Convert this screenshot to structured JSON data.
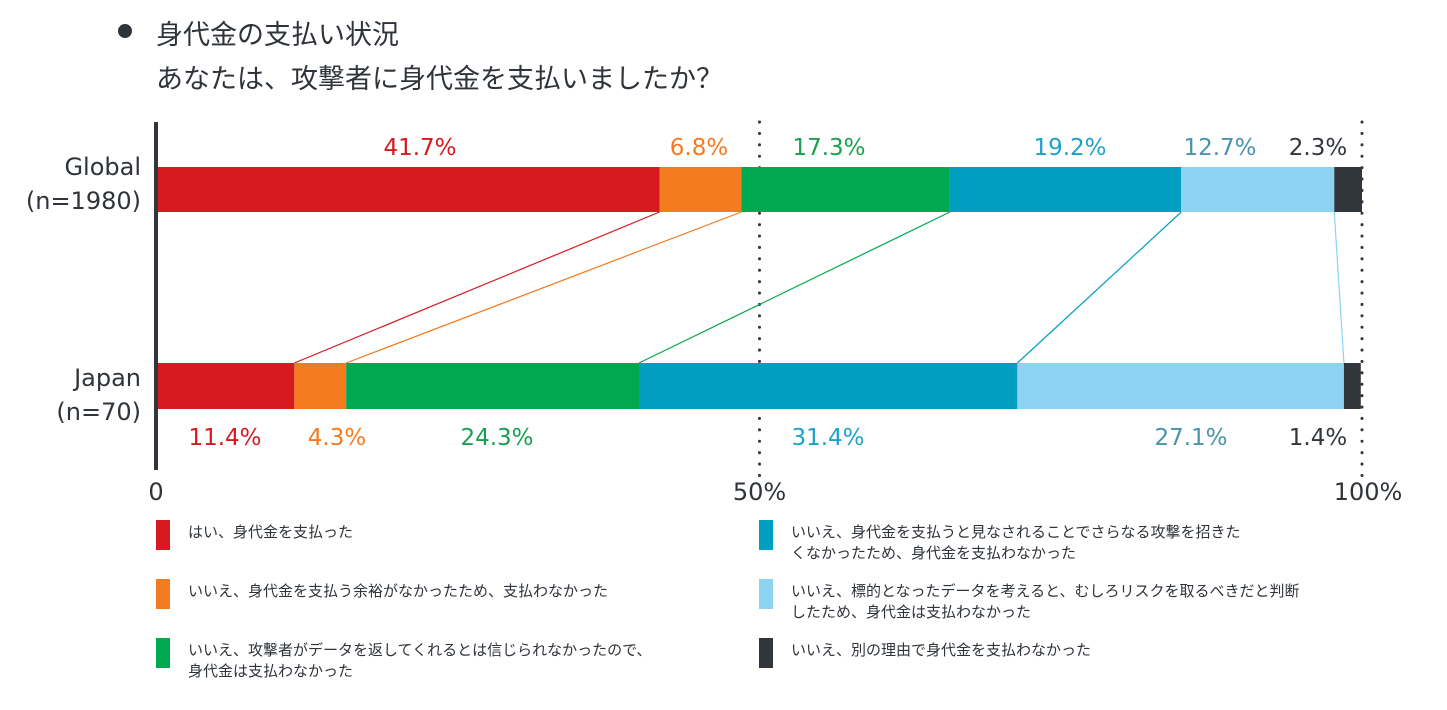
{
  "title": {
    "line1": "身代金の支払い状況",
    "line2": "あなたは、攻撃者に身代金を支払いましたか？"
  },
  "chart_data": {
    "type": "bar",
    "orientation": "horizontal-stacked-100",
    "title": "身代金の支払い状況 あなたは、攻撃者に身代金を支払いましたか？",
    "xlabel": "",
    "ylabel": "",
    "xlim": [
      0,
      100
    ],
    "x_ticks": [
      "0",
      "50%",
      "100%"
    ],
    "x_tick_values": [
      0,
      50,
      100
    ],
    "grid": "dotted vertical lines at 50% and 100%",
    "categories": [
      {
        "name": "Global",
        "n_label": "(n=1980)"
      },
      {
        "name": "Japan",
        "n_label": "(n=70)"
      }
    ],
    "series": [
      {
        "name": "はい、身代金を支払った",
        "color": "#d71920",
        "values": [
          41.7,
          11.4
        ],
        "labels": [
          "41.7%",
          "11.4%"
        ]
      },
      {
        "name": "いいえ、身代金を支払う余裕がなかったため、支払わなかった",
        "color": "#f47b20",
        "values": [
          6.8,
          4.3
        ],
        "labels": [
          "6.8%",
          "4.3%"
        ]
      },
      {
        "name": "いいえ、攻撃者がデータを返してくれるとは信じられなかったので、身代金は支払わなかった",
        "color": "#00a84f",
        "values": [
          17.3,
          24.3
        ],
        "labels": [
          "17.3%",
          "24.3%"
        ]
      },
      {
        "name": "いいえ、身代金を支払うと見なされることでさらなる攻撃を招きたくなかったため、身代金を支払わなかった",
        "color": "#009fc2",
        "values": [
          19.2,
          31.4
        ],
        "labels": [
          "19.2%",
          "31.4%"
        ]
      },
      {
        "name": "いいえ、標的となったデータを考えると、むしろリスクを取るべきだと判断したため、身代金は支払わなかった",
        "color": "#8dd3f2",
        "values": [
          12.7,
          27.1
        ],
        "labels": [
          "12.7%",
          "27.1%"
        ]
      },
      {
        "name": "いいえ、別の理由で身代金を支払わなかった",
        "color": "#31363d",
        "values": [
          2.3,
          1.4
        ],
        "labels": [
          "2.3%",
          "1.4%"
        ]
      }
    ],
    "label_colors": [
      "#d71920",
      "#f47b20",
      "#1aa050",
      "#1fa1c7",
      "#4a93ad",
      "#31363d"
    ],
    "connector_lines": true,
    "legend": {
      "placement": "bottom",
      "columns": 2,
      "items": [
        {
          "text_lines": [
            "はい、身代金を支払った"
          ],
          "color": "#d71920"
        },
        {
          "text_lines": [
            "いいえ、身代金を支払う余裕がなかったため、支払わなかった"
          ],
          "color": "#f47b20"
        },
        {
          "text_lines": [
            "いいえ、攻撃者がデータを返してくれるとは信じられなかったので、",
            "身代金は支払わなかった"
          ],
          "color": "#00a84f"
        },
        {
          "text_lines": [
            "いいえ、身代金を支払うと見なされることでさらなる攻撃を招きた",
            "くなかったため、身代金を支払わなかった"
          ],
          "color": "#009fc2"
        },
        {
          "text_lines": [
            "いいえ、標的となったデータを考えると、むしろリスクを取るべきだと判断",
            "したため、身代金は支払わなかった"
          ],
          "color": "#8dd3f2"
        },
        {
          "text_lines": [
            "いいえ、別の理由で身代金を支払わなかった"
          ],
          "color": "#31363d"
        }
      ]
    }
  }
}
